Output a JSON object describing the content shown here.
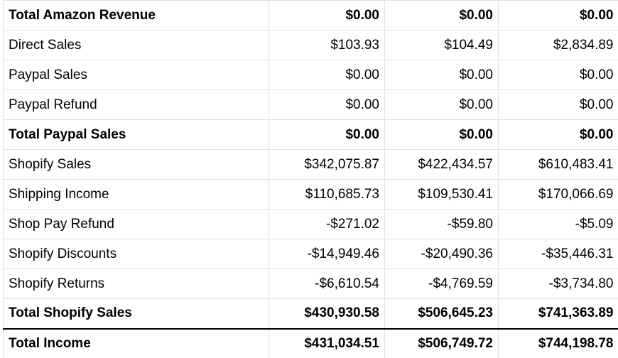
{
  "table": {
    "rows": [
      {
        "label": "Total Amazon Revenue",
        "values": [
          "$0.00",
          "$0.00",
          "$0.00"
        ],
        "bold": true,
        "thick_bottom_border": false
      },
      {
        "label": "Direct Sales",
        "values": [
          "$103.93",
          "$104.49",
          "$2,834.89"
        ],
        "bold": false,
        "thick_bottom_border": false
      },
      {
        "label": "Paypal Sales",
        "values": [
          "$0.00",
          "$0.00",
          "$0.00"
        ],
        "bold": false,
        "thick_bottom_border": false
      },
      {
        "label": "Paypal Refund",
        "values": [
          "$0.00",
          "$0.00",
          "$0.00"
        ],
        "bold": false,
        "thick_bottom_border": false
      },
      {
        "label": "Total Paypal Sales",
        "values": [
          "$0.00",
          "$0.00",
          "$0.00"
        ],
        "bold": true,
        "thick_bottom_border": false
      },
      {
        "label": "Shopify Sales",
        "values": [
          "$342,075.87",
          "$422,434.57",
          "$610,483.41"
        ],
        "bold": false,
        "thick_bottom_border": false
      },
      {
        "label": "Shipping Income",
        "values": [
          "$110,685.73",
          "$109,530.41",
          "$170,066.69"
        ],
        "bold": false,
        "thick_bottom_border": false
      },
      {
        "label": "Shop Pay Refund",
        "values": [
          "-$271.02",
          "-$59.80",
          "-$5.09"
        ],
        "bold": false,
        "thick_bottom_border": false
      },
      {
        "label": "Shopify Discounts",
        "values": [
          "-$14,949.46",
          "-$20,490.36",
          "-$35,446.31"
        ],
        "bold": false,
        "thick_bottom_border": false
      },
      {
        "label": "Shopify Returns",
        "values": [
          "-$6,610.54",
          "-$4,769.59",
          "-$3,734.80"
        ],
        "bold": false,
        "thick_bottom_border": false
      },
      {
        "label": "Total Shopify Sales",
        "values": [
          "$430,930.58",
          "$506,645.23",
          "$741,363.89"
        ],
        "bold": true,
        "thick_bottom_border": true
      },
      {
        "label": "Total Income",
        "values": [
          "$431,034.51",
          "$506,749.72",
          "$744,198.78"
        ],
        "bold": true,
        "thick_bottom_border": false
      }
    ],
    "colors": {
      "gridline": "#e1e1e1",
      "text": "#000000",
      "background": "#ffffff",
      "emphasis_border": "#000000"
    }
  }
}
